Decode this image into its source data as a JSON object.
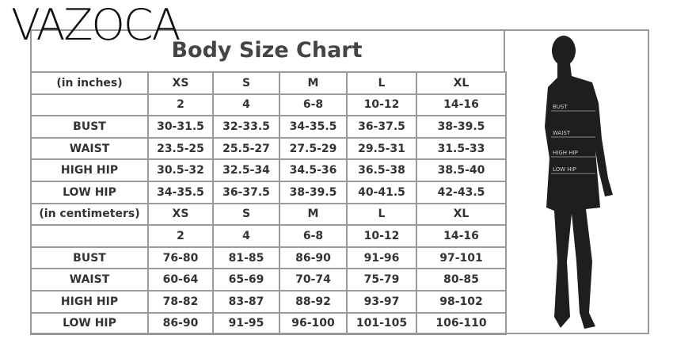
{
  "brand": "VAZOCA",
  "title": "Body Size Chart",
  "table": {
    "rows": [
      [
        "(in inches)",
        "XS",
        "S",
        "M",
        "L",
        "XL"
      ],
      [
        null,
        "2",
        "4",
        "6-8",
        "10-12",
        "14-16"
      ],
      [
        "BUST",
        "30-31.5",
        "32-33.5",
        "34-35.5",
        "36-37.5",
        "38-39.5"
      ],
      [
        "WAIST",
        "23.5-25",
        "25.5-27",
        "27.5-29",
        "29.5-31",
        "31.5-33"
      ],
      [
        "HIGH HIP",
        "30.5-32",
        "32.5-34",
        "34.5-36",
        "36.5-38",
        "38.5-40"
      ],
      [
        "LOW HIP",
        "34-35.5",
        "36-37.5",
        "38-39.5",
        "40-41.5",
        "42-43.5"
      ],
      [
        "(in centimeters)",
        "XS",
        "S",
        "M",
        "L",
        "XL"
      ],
      [
        null,
        "2",
        "4",
        "6-8",
        "10-12",
        "14-16"
      ],
      [
        "BUST",
        "76-80",
        "81-85",
        "86-90",
        "91-96",
        "97-101"
      ],
      [
        "WAIST",
        "60-64",
        "65-69",
        "70-74",
        "75-79",
        "80-85"
      ],
      [
        "HIGH HIP",
        "78-82",
        "83-87",
        "88-92",
        "93-97",
        "98-102"
      ],
      [
        "LOW HIP",
        "86-90",
        "91-95",
        "96-100",
        "101-105",
        "106-110"
      ]
    ]
  },
  "figure": {
    "labels": [
      "BUST",
      "WAIST",
      "HIGH HIP",
      "LOW HIP"
    ]
  }
}
